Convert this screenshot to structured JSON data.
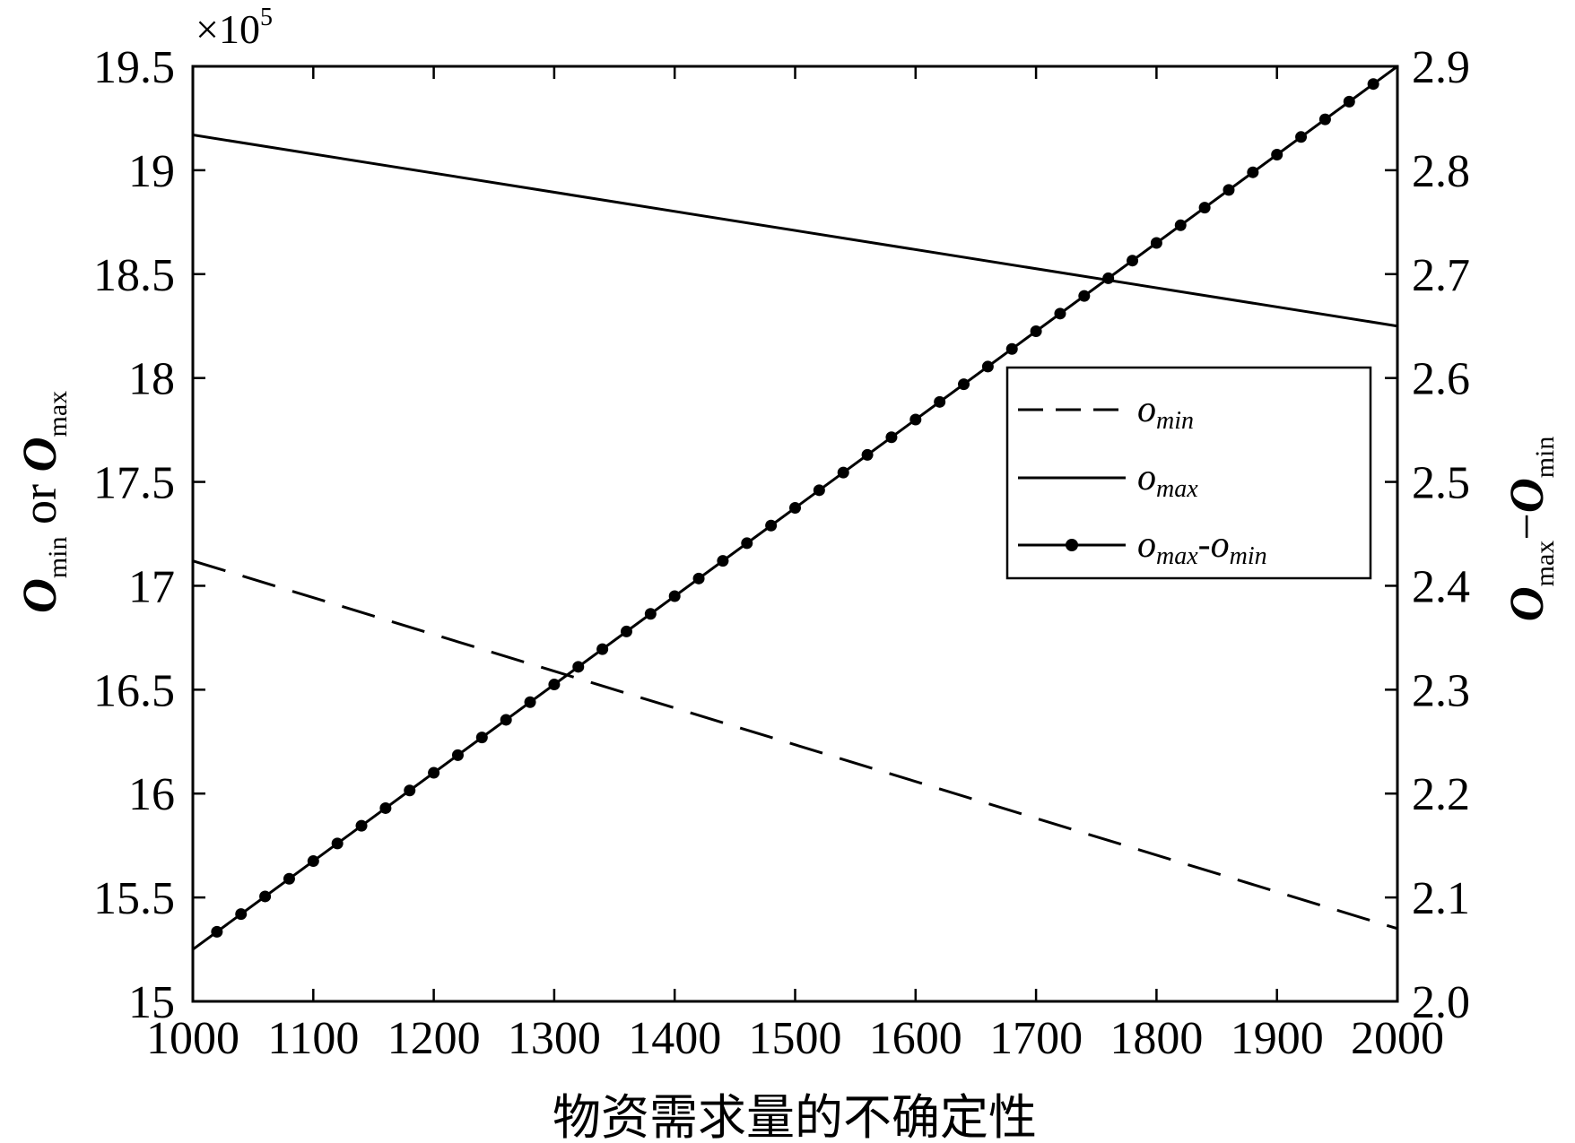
{
  "chart_data": {
    "type": "line",
    "xlabel": "物资需求量的不确定性",
    "ylabel_left": {
      "main": "O",
      "sub1": "min",
      "mid": " or ",
      "main2": "O",
      "sub2": "max"
    },
    "ylabel_right": {
      "main": "O",
      "sub1": "max",
      "mid": "−",
      "main2": "O",
      "sub2": "min"
    },
    "exponent_label": {
      "prefix": "×10",
      "power": "5"
    },
    "x": {
      "min": 1000,
      "max": 2000,
      "ticks": [
        1000,
        1100,
        1200,
        1300,
        1400,
        1500,
        1600,
        1700,
        1800,
        1900,
        2000
      ]
    },
    "y_left": {
      "min": 15,
      "max": 19.5,
      "ticks": [
        15,
        15.5,
        16,
        16.5,
        17,
        17.5,
        18,
        18.5,
        19,
        19.5
      ],
      "tick_labels": [
        "15",
        "15.5",
        "16",
        "16.5",
        "17",
        "17.5",
        "18",
        "18.5",
        "19",
        "19.5"
      ]
    },
    "y_right": {
      "min": 2.0,
      "max": 2.9,
      "ticks": [
        2.0,
        2.1,
        2.2,
        2.3,
        2.4,
        2.5,
        2.6,
        2.7,
        2.8,
        2.9
      ],
      "tick_labels": [
        "2.0",
        "2.1",
        "2.2",
        "2.3",
        "2.4",
        "2.5",
        "2.6",
        "2.7",
        "2.8",
        "2.9"
      ]
    },
    "grid": false,
    "legend_position": "middle-right",
    "series": [
      {
        "name": "o_min",
        "legend": {
          "base": "o",
          "sub": "min"
        },
        "axis": "left",
        "style": "dashed",
        "x": [
          1000,
          2000
        ],
        "values": [
          17.12,
          15.35
        ]
      },
      {
        "name": "o_max",
        "legend": {
          "base": "o",
          "sub": "max"
        },
        "axis": "left",
        "style": "solid",
        "x": [
          1000,
          2000
        ],
        "values": [
          19.17,
          18.25
        ]
      },
      {
        "name": "o_max-o_min",
        "legend": {
          "base": "o",
          "sub": "max",
          "mid": "-",
          "base2": "o",
          "sub2": "min"
        },
        "axis": "right",
        "style": "solid-dots",
        "x": [
          1000,
          2000
        ],
        "values": [
          2.05,
          2.9
        ],
        "marker_step": 20
      }
    ],
    "colors": {
      "line": "#000000",
      "background": "#ffffff"
    }
  }
}
